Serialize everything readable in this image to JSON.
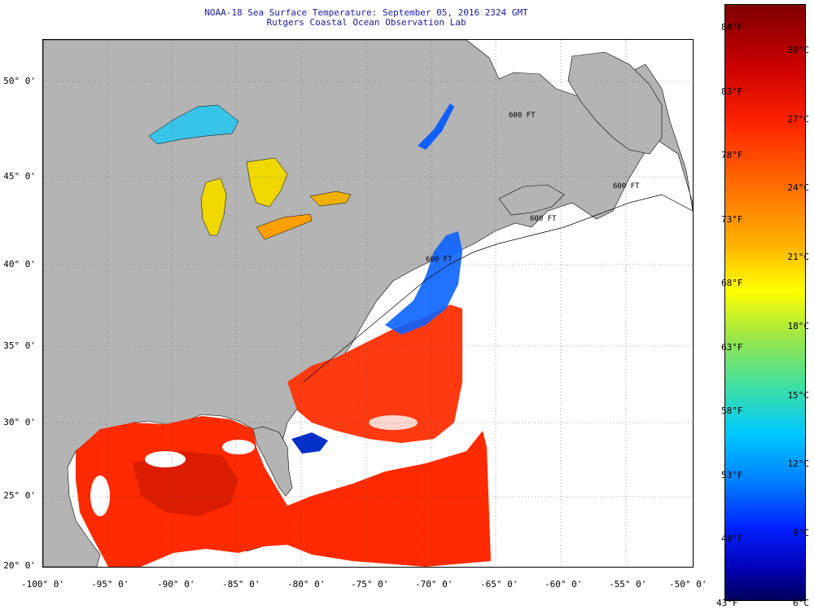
{
  "title": {
    "line1": "NOAA-18 Sea Surface Temperature:  September 05, 2016 2324 GMT",
    "line2": "Rutgers Coastal Ocean Observation Lab"
  },
  "axes": {
    "longitude_labels": [
      "-100° 0'",
      "-95° 0'",
      "-90° 0'",
      "-85° 0'",
      "-80° 0'",
      "-75° 0'",
      "-70° 0'",
      "-65° 0'",
      "-60° 0'",
      "-55° 0'",
      "-50° 0'"
    ],
    "latitude_labels": [
      "50° 0'",
      "45° 0'",
      "40° 0'",
      "35° 0'",
      "30° 0'",
      "25° 0'",
      "20° 0'"
    ]
  },
  "colorbar": {
    "fahrenheit_labels": [
      "88°F",
      "83°F",
      "78°F",
      "73°F",
      "68°F",
      "63°F",
      "58°F",
      "53°F",
      "48°F",
      "43°F"
    ],
    "celsius_labels": [
      "30°C",
      "27°C",
      "24°C",
      "21°C",
      "18°C",
      "15°C",
      "12°C",
      "9°C",
      "6°C"
    ]
  },
  "contour_labels": [
    "600 FT",
    "600 FT",
    "600 FT",
    "600 FT"
  ],
  "colors": {
    "land": "#b4b4b4",
    "warm_sst": "#ff2a00",
    "hot_sst": "#d41a00",
    "cool_sst": "#0a62ff",
    "lake_cyan": "#38c4e8",
    "lake_yellow": "#f0d800",
    "lake_orange": "#ffa000",
    "title": "#1a1aa0"
  }
}
